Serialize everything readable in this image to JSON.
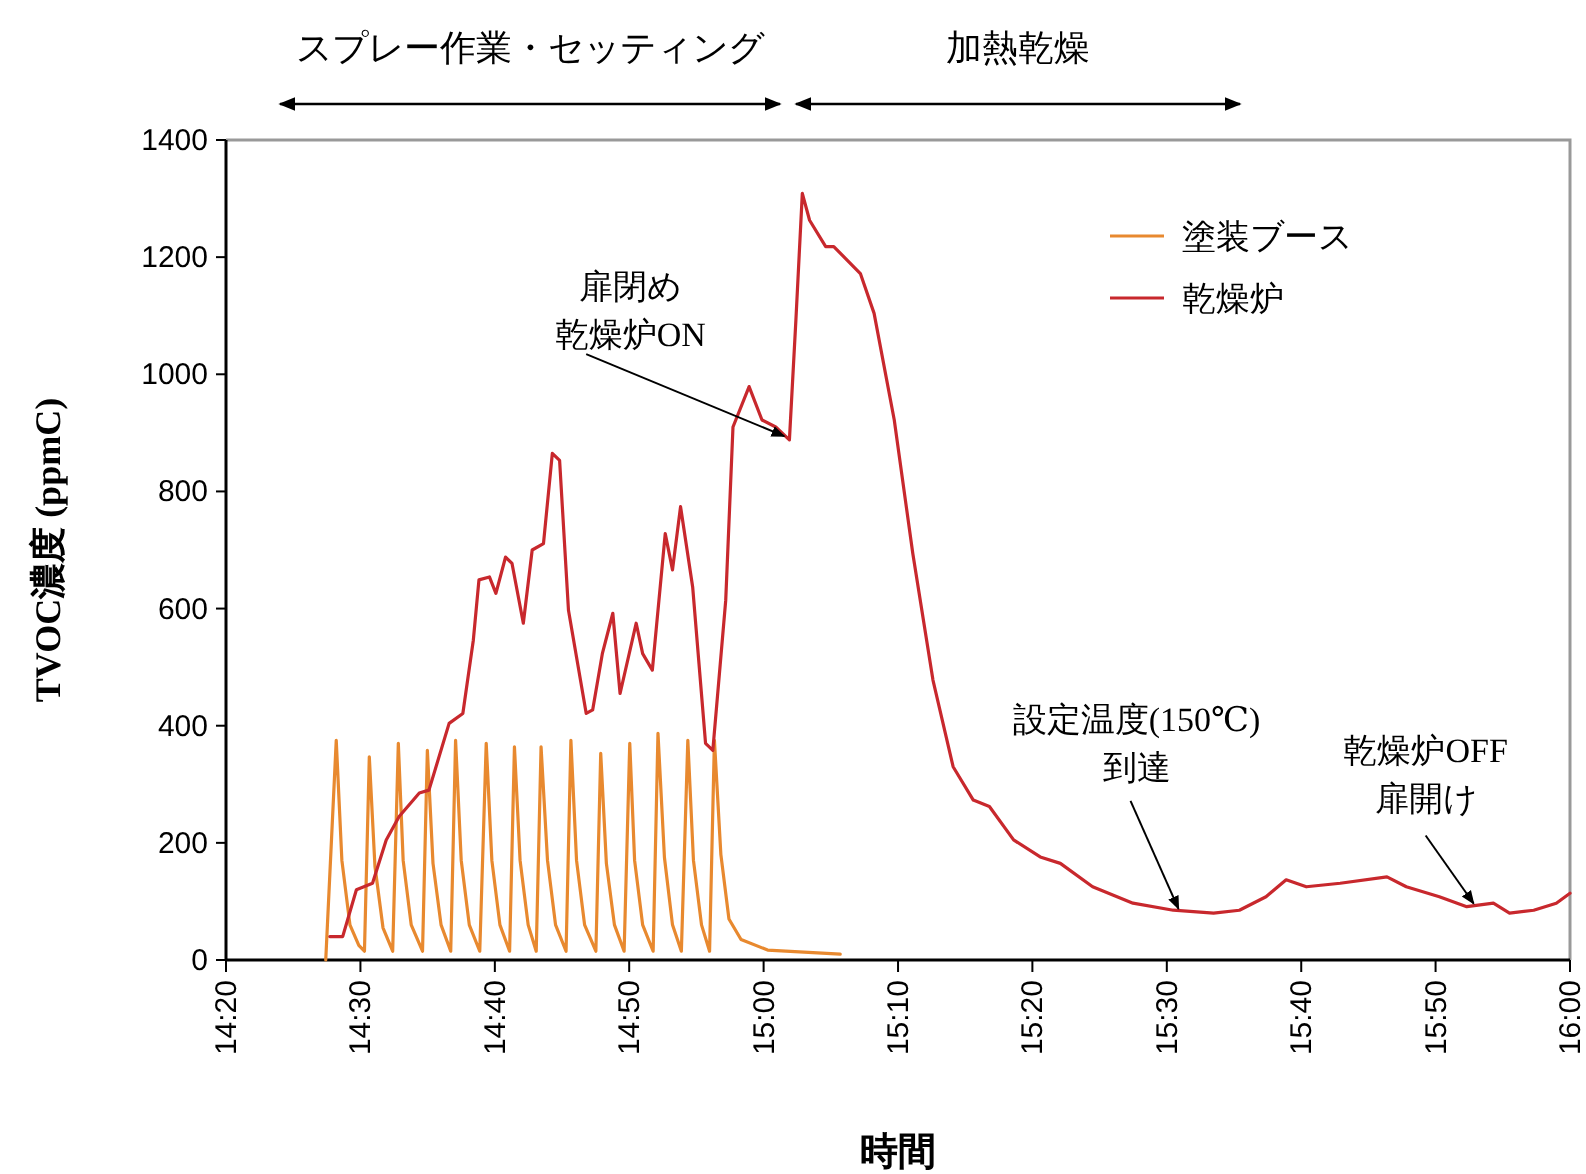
{
  "chart_data": {
    "type": "line",
    "xlabel": "時間",
    "ylabel": "TVOC濃度 (ppmC)",
    "xlim": [
      14.3333,
      16.0
    ],
    "xticks": [
      {
        "value": 14.3333,
        "label": "14:20"
      },
      {
        "value": 14.5,
        "label": "14:30"
      },
      {
        "value": 14.6667,
        "label": "14:40"
      },
      {
        "value": 14.8333,
        "label": "14:50"
      },
      {
        "value": 15.0,
        "label": "15:00"
      },
      {
        "value": 15.1667,
        "label": "15:10"
      },
      {
        "value": 15.3333,
        "label": "15:20"
      },
      {
        "value": 15.5,
        "label": "15:30"
      },
      {
        "value": 15.6667,
        "label": "15:40"
      },
      {
        "value": 15.8333,
        "label": "15:50"
      },
      {
        "value": 16.0,
        "label": "16:00"
      }
    ],
    "ylim": [
      0,
      1400
    ],
    "yticks": [
      0,
      200,
      400,
      600,
      800,
      1000,
      1200,
      1400
    ],
    "legend": "top right",
    "grid": false,
    "marker": "none",
    "line_style": "solid",
    "series": [
      {
        "name": "塗装ブース",
        "color": "#e8892f",
        "x": [
          14.457,
          14.47,
          14.477,
          14.487,
          14.498,
          14.505,
          14.511,
          14.518,
          14.528,
          14.54,
          14.547,
          14.553,
          14.563,
          14.577,
          14.583,
          14.59,
          14.6,
          14.612,
          14.618,
          14.625,
          14.635,
          14.648,
          14.656,
          14.663,
          14.673,
          14.685,
          14.691,
          14.698,
          14.708,
          14.718,
          14.724,
          14.732,
          14.742,
          14.755,
          14.761,
          14.768,
          14.778,
          14.792,
          14.798,
          14.805,
          14.815,
          14.827,
          14.834,
          14.84,
          14.85,
          14.863,
          14.869,
          14.877,
          14.887,
          14.898,
          14.906,
          14.913,
          14.923,
          14.933,
          14.939,
          14.947,
          14.957,
          14.972,
          15.005,
          15.095
        ],
        "values": [
          0,
          375,
          170,
          60,
          25,
          15,
          347,
          160,
          55,
          15,
          370,
          170,
          60,
          15,
          358,
          165,
          60,
          15,
          375,
          170,
          60,
          15,
          370,
          170,
          60,
          15,
          364,
          170,
          60,
          15,
          364,
          170,
          60,
          15,
          375,
          170,
          60,
          15,
          353,
          165,
          60,
          15,
          370,
          170,
          60,
          15,
          387,
          175,
          60,
          15,
          375,
          170,
          60,
          15,
          375,
          180,
          70,
          35,
          17,
          10
        ]
      },
      {
        "name": "乾燥炉",
        "color": "#c8282d",
        "x": [
          14.462,
          14.478,
          14.495,
          14.515,
          14.532,
          14.548,
          14.573,
          14.585,
          14.61,
          14.627,
          14.64,
          14.647,
          14.66,
          14.668,
          14.68,
          14.688,
          14.702,
          14.713,
          14.727,
          14.738,
          14.747,
          14.758,
          14.78,
          14.788,
          14.8,
          14.813,
          14.822,
          14.842,
          14.85,
          14.862,
          14.878,
          14.887,
          14.897,
          14.912,
          14.928,
          14.937,
          14.953,
          14.962,
          14.982,
          14.998,
          15.015,
          15.032,
          15.04,
          15.048,
          15.057,
          15.077,
          15.087,
          15.12,
          15.137,
          15.162,
          15.185,
          15.21,
          15.235,
          15.26,
          15.28,
          15.31,
          15.343,
          15.368,
          15.408,
          15.458,
          15.508,
          15.558,
          15.59,
          15.623,
          15.648,
          15.673,
          15.715,
          15.773,
          15.797,
          15.838,
          15.872,
          15.905,
          15.925,
          15.955,
          15.983,
          16.0
        ],
        "values": [
          40,
          40,
          120,
          131,
          205,
          245,
          285,
          290,
          404,
          421,
          546,
          649,
          654,
          626,
          688,
          677,
          575,
          700,
          711,
          865,
          853,
          597,
          421,
          427,
          523,
          592,
          455,
          575,
          523,
          495,
          728,
          666,
          774,
          637,
          370,
          358,
          614,
          910,
          979,
          922,
          910,
          888,
          1092,
          1309,
          1263,
          1218,
          1218,
          1172,
          1104,
          922,
          694,
          478,
          330,
          273,
          262,
          205,
          176,
          165,
          125,
          97,
          85,
          80,
          85,
          108,
          137,
          125,
          131,
          142,
          125,
          108,
          91,
          97,
          80,
          85,
          97,
          114
        ]
      }
    ],
    "annotations": [
      {
        "text": "扉閉め乾燥炉ON",
        "x": 15.028,
        "y": 891
      },
      {
        "text": "設定温度(150℃)到達",
        "x": 15.517,
        "y": 84
      },
      {
        "text": "乾燥炉OFF扉開け",
        "x": 15.883,
        "y": 93
      },
      "スプレー作業・セッティング",
      "加熱乾燥"
    ]
  }
}
